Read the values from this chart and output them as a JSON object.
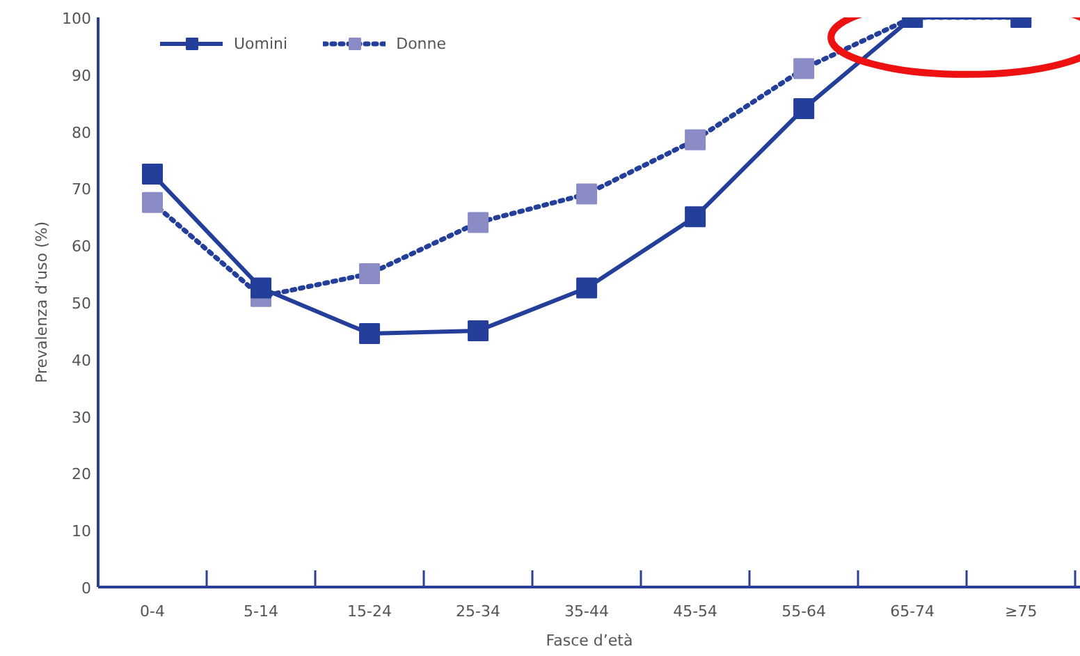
{
  "chart_data": {
    "type": "line",
    "xlabel": "Fasce d’età",
    "ylabel": "Prevalenza d’uso (%)",
    "categories": [
      "0-4",
      "5-14",
      "15-24",
      "25-34",
      "35-44",
      "45-54",
      "55-64",
      "65-74",
      "≥75"
    ],
    "series": [
      {
        "name": "Uomini",
        "color": "#233f99",
        "line_style": "solid",
        "values": [
          72.5,
          52.5,
          44.5,
          45,
          52.5,
          65,
          84,
          100,
          100
        ]
      },
      {
        "name": "Donne",
        "color": "#8b8bc6",
        "line_style": "dotted",
        "values": [
          67.5,
          51,
          55,
          64,
          69,
          78.5,
          91,
          100,
          100
        ]
      }
    ],
    "marker": "square",
    "ylim": [
      0,
      100
    ],
    "yticks": [
      0,
      10,
      20,
      30,
      40,
      50,
      60,
      70,
      80,
      90,
      100
    ],
    "grid": false,
    "legend": "top left"
  }
}
